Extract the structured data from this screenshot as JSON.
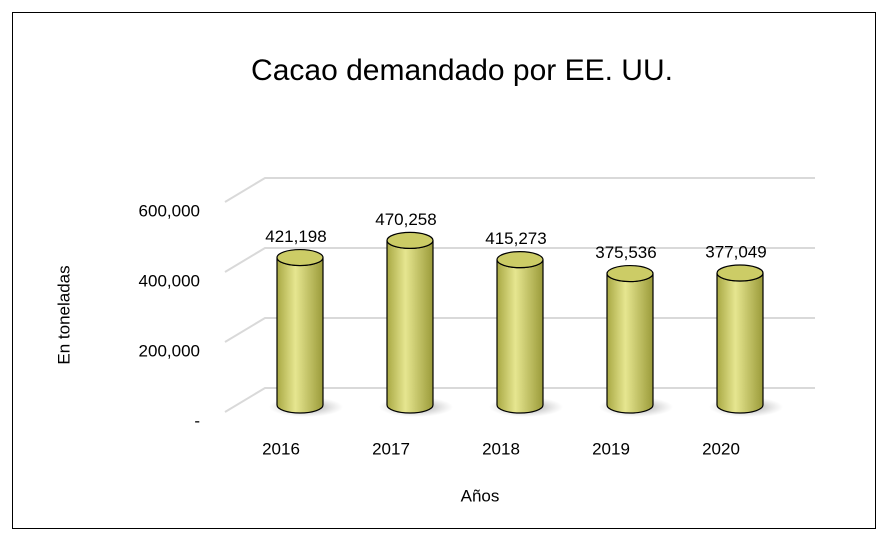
{
  "chart_data": {
    "type": "bar",
    "title": "Cacao demandado por EE. UU.",
    "x_label": "Años",
    "y_label": "En toneladas",
    "categories": [
      "2016",
      "2017",
      "2018",
      "2019",
      "2020"
    ],
    "values": [
      421198,
      470258,
      415273,
      375536,
      377049
    ],
    "value_labels": [
      "421,198",
      "470,258",
      "415,273",
      "375,536",
      "377,049"
    ],
    "color": "#cccc66",
    "ylim": [
      0,
      600000
    ],
    "yticks": [
      {
        "value": 0,
        "label": "-"
      },
      {
        "value": 200000,
        "label": "200,000"
      },
      {
        "value": 400000,
        "label": "400,000"
      },
      {
        "value": 600000,
        "label": "600,000"
      }
    ],
    "grid": true
  }
}
